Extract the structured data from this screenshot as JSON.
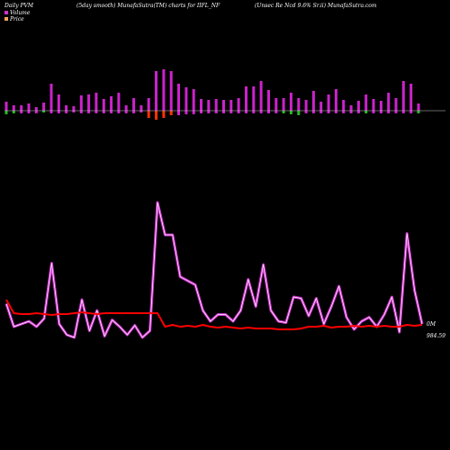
{
  "header": {
    "left": "Daily PVM",
    "middle": "(5day smooth) MunafaSutra(TM) charts for IIFL_NF",
    "right": "(Unsec Re Ncd 9.6% Sr.ii) MunafaSutra.com"
  },
  "legend": [
    {
      "label": "Volume",
      "color": "#cc33cc"
    },
    {
      "label": "Price",
      "color": "#f4a460"
    }
  ],
  "colors": {
    "background": "#000000",
    "volume_up": "#cc22cc",
    "volume_down": "#ff3300",
    "volume_green": "#22bb22",
    "volume_line": "#cc33cc",
    "price_line": "#ff0000",
    "baseline": "#cccccc"
  },
  "chart_data": {
    "type": "line",
    "title": "(5day smooth) MunafaSutra(TM) charts for IIFL_NF",
    "series": [
      {
        "name": "Volume",
        "values": [
          0.25,
          0.08,
          0.1,
          0.12,
          0.08,
          0.14,
          0.55,
          0.1,
          0.02,
          0.0,
          0.28,
          0.05,
          0.2,
          0.01,
          0.13,
          0.08,
          0.02,
          0.09,
          0.0,
          0.05,
          1.0,
          0.76,
          0.76,
          0.45,
          0.42,
          0.39,
          0.2,
          0.12,
          0.17,
          0.17,
          0.12,
          0.2,
          0.43,
          0.23,
          0.54,
          0.2,
          0.12,
          0.11,
          0.3,
          0.29,
          0.16,
          0.29,
          0.1,
          0.23,
          0.38,
          0.15,
          0.06,
          0.12,
          0.15,
          0.08,
          0.17,
          0.3,
          0.04,
          0.77,
          0.35,
          0.1
        ]
      },
      {
        "name": "Price",
        "values": [
          0.25,
          0.1,
          0.09,
          0.09,
          0.1,
          0.09,
          0.08,
          0.09,
          0.09,
          0.1,
          0.11,
          0.1,
          0.09,
          0.1,
          0.1,
          0.1,
          0.1,
          0.1,
          0.1,
          0.1,
          0.1,
          -0.05,
          -0.03,
          -0.05,
          -0.04,
          -0.05,
          -0.03,
          -0.05,
          -0.06,
          -0.05,
          -0.06,
          -0.07,
          -0.06,
          -0.07,
          -0.07,
          -0.07,
          -0.08,
          -0.08,
          -0.08,
          -0.07,
          -0.05,
          -0.05,
          -0.04,
          -0.06,
          -0.05,
          -0.05,
          -0.04,
          -0.05,
          -0.04,
          -0.05,
          -0.04,
          -0.05,
          -0.05,
          -0.03,
          -0.04,
          -0.03
        ]
      }
    ],
    "volume_bars": {
      "up": [
        10,
        6,
        6,
        8,
        4,
        9,
        30,
        18,
        6,
        5,
        17,
        18,
        20,
        13,
        16,
        20,
        6,
        14,
        6,
        14,
        44,
        46,
        44,
        30,
        26,
        24,
        13,
        12,
        13,
        12,
        12,
        14,
        27,
        27,
        33,
        23,
        14,
        14,
        20,
        14,
        12,
        22,
        10,
        18,
        24,
        12,
        6,
        11,
        18,
        13,
        11,
        20,
        14,
        33,
        30,
        8
      ],
      "down": [
        4,
        3,
        3,
        3,
        3,
        2,
        3,
        3,
        3,
        2,
        3,
        3,
        3,
        3,
        3,
        3,
        3,
        3,
        2,
        8,
        10,
        8,
        5,
        5,
        4,
        4,
        3,
        3,
        3,
        3,
        3,
        3,
        3,
        3,
        3,
        3,
        3,
        3,
        4,
        5,
        3,
        3,
        3,
        3,
        3,
        3,
        3,
        3,
        3,
        3,
        3,
        3,
        3,
        3,
        3,
        3
      ],
      "down_color": [
        "green",
        "green",
        "",
        "",
        "",
        "green",
        "",
        "",
        "",
        "",
        "",
        "",
        "",
        "",
        "",
        "",
        "",
        "",
        "",
        "red",
        "red",
        "red",
        "red",
        "",
        "",
        "",
        "",
        "",
        "",
        "",
        "",
        "",
        "",
        "",
        "",
        "",
        "",
        "green",
        "green",
        "green",
        "",
        "",
        "",
        "",
        "",
        "",
        "",
        "",
        "green",
        "",
        "",
        "",
        "",
        "",
        "",
        "green"
      ]
    },
    "labels": {
      "volume_last": "0M",
      "price_last": "984.59"
    }
  }
}
